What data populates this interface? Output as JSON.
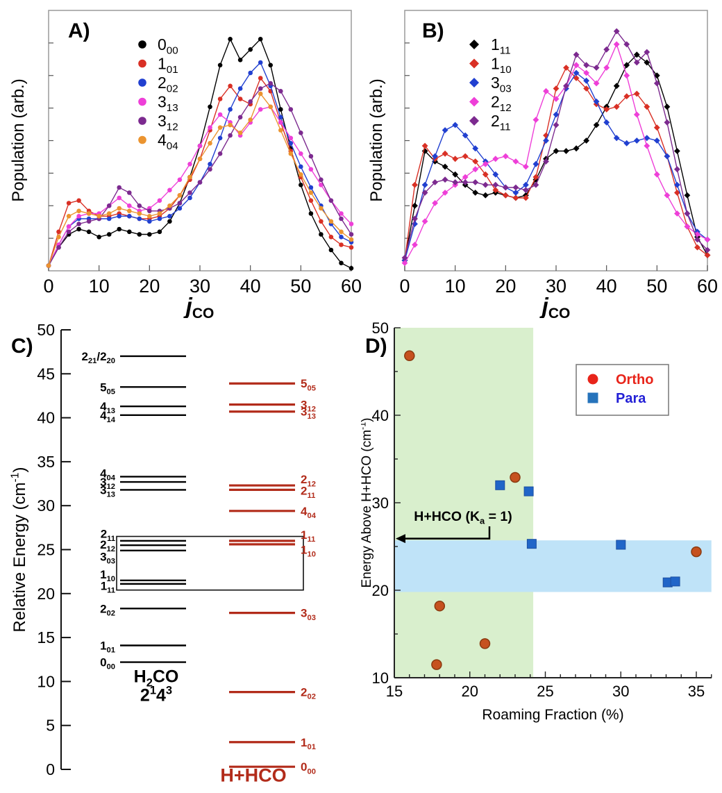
{
  "figure": {
    "background": "#ffffff"
  },
  "chart_data": [
    {
      "panel_label": "A)",
      "type": "line",
      "marker": "circle",
      "xlabel": {
        "main": "j",
        "sub": "CO"
      },
      "ylabel": "Population (arb.)",
      "xlim": [
        0,
        60
      ],
      "xticks": [
        0,
        10,
        20,
        30,
        40,
        50,
        60
      ],
      "x_step": 2,
      "series": [
        {
          "label": "0_00_",
          "color": "#000000",
          "values": [
            0.02,
            0.09,
            0.14,
            0.16,
            0.15,
            0.13,
            0.14,
            0.16,
            0.15,
            0.14,
            0.14,
            0.15,
            0.19,
            0.26,
            0.36,
            0.48,
            0.63,
            0.79,
            0.89,
            0.81,
            0.85,
            0.89,
            0.79,
            0.62,
            0.47,
            0.33,
            0.22,
            0.14,
            0.08,
            0.03,
            0.01
          ]
        },
        {
          "label": "1_01_",
          "color": "#d93025",
          "values": [
            0.02,
            0.15,
            0.26,
            0.27,
            0.23,
            0.21,
            0.21,
            0.22,
            0.21,
            0.2,
            0.2,
            0.21,
            0.24,
            0.29,
            0.35,
            0.43,
            0.54,
            0.66,
            0.71,
            0.66,
            0.64,
            0.74,
            0.69,
            0.57,
            0.46,
            0.36,
            0.27,
            0.19,
            0.13,
            0.1,
            0.09
          ]
        },
        {
          "label": "2_02_",
          "color": "#2140d0",
          "values": [
            0.02,
            0.1,
            0.17,
            0.2,
            0.2,
            0.2,
            0.2,
            0.21,
            0.21,
            0.2,
            0.19,
            0.2,
            0.21,
            0.24,
            0.28,
            0.34,
            0.41,
            0.51,
            0.62,
            0.7,
            0.76,
            0.8,
            0.71,
            0.59,
            0.49,
            0.4,
            0.32,
            0.25,
            0.18,
            0.13,
            0.11
          ]
        },
        {
          "label": "3_13_",
          "color": "#ee3fd8",
          "values": [
            0.02,
            0.1,
            0.17,
            0.21,
            0.22,
            0.22,
            0.25,
            0.28,
            0.25,
            0.23,
            0.24,
            0.27,
            0.31,
            0.35,
            0.41,
            0.48,
            0.55,
            0.6,
            0.57,
            0.52,
            0.57,
            0.62,
            0.63,
            0.57,
            0.51,
            0.45,
            0.39,
            0.33,
            0.27,
            0.22,
            0.18
          ]
        },
        {
          "label": "3_12_",
          "color": "#7c2a8f",
          "values": [
            0.02,
            0.09,
            0.15,
            0.18,
            0.19,
            0.2,
            0.25,
            0.32,
            0.3,
            0.25,
            0.23,
            0.23,
            0.24,
            0.26,
            0.3,
            0.34,
            0.39,
            0.45,
            0.52,
            0.59,
            0.65,
            0.7,
            0.72,
            0.69,
            0.62,
            0.53,
            0.44,
            0.35,
            0.27,
            0.2,
            0.14
          ]
        },
        {
          "label": "4_04_",
          "color": "#eb9430",
          "values": [
            0.02,
            0.13,
            0.21,
            0.23,
            0.22,
            0.21,
            0.22,
            0.24,
            0.23,
            0.22,
            0.21,
            0.22,
            0.25,
            0.29,
            0.36,
            0.43,
            0.49,
            0.55,
            0.56,
            0.53,
            0.58,
            0.68,
            0.63,
            0.54,
            0.45,
            0.37,
            0.3,
            0.24,
            0.19,
            0.15,
            0.12
          ]
        }
      ]
    },
    {
      "panel_label": "B)",
      "type": "line",
      "marker": "diamond",
      "xlabel": {
        "main": "j",
        "sub": "CO"
      },
      "ylabel": "Population (arb.)",
      "xlim": [
        0,
        60
      ],
      "xticks": [
        0,
        10,
        20,
        30,
        40,
        50,
        60
      ],
      "x_step": 2,
      "series": [
        {
          "label": "1_11_",
          "color": "#000000",
          "values": [
            0.04,
            0.25,
            0.46,
            0.42,
            0.4,
            0.37,
            0.33,
            0.3,
            0.29,
            0.3,
            0.29,
            0.28,
            0.29,
            0.35,
            0.43,
            0.46,
            0.46,
            0.47,
            0.5,
            0.56,
            0.63,
            0.71,
            0.79,
            0.83,
            0.8,
            0.75,
            0.63,
            0.46,
            0.29,
            0.13,
            0.06
          ]
        },
        {
          "label": "1_10_",
          "color": "#d93025",
          "values": [
            0.04,
            0.33,
            0.48,
            0.43,
            0.45,
            0.43,
            0.44,
            0.42,
            0.37,
            0.31,
            0.29,
            0.28,
            0.28,
            0.36,
            0.52,
            0.7,
            0.78,
            0.74,
            0.7,
            0.64,
            0.62,
            0.63,
            0.67,
            0.68,
            0.63,
            0.55,
            0.44,
            0.3,
            0.17,
            0.09,
            0.06
          ]
        },
        {
          "label": "3_03_",
          "color": "#2140d0",
          "values": [
            0.04,
            0.18,
            0.33,
            0.44,
            0.54,
            0.56,
            0.52,
            0.47,
            0.42,
            0.37,
            0.32,
            0.3,
            0.33,
            0.41,
            0.5,
            0.6,
            0.7,
            0.76,
            0.73,
            0.65,
            0.57,
            0.51,
            0.49,
            0.5,
            0.51,
            0.5,
            0.44,
            0.33,
            0.22,
            0.15,
            0.12
          ]
        },
        {
          "label": "2_12_",
          "color": "#ee3fd8",
          "values": [
            0.03,
            0.1,
            0.19,
            0.26,
            0.3,
            0.33,
            0.36,
            0.39,
            0.41,
            0.43,
            0.44,
            0.42,
            0.4,
            0.58,
            0.69,
            0.66,
            0.71,
            0.79,
            0.76,
            0.72,
            0.78,
            0.87,
            0.75,
            0.6,
            0.48,
            0.37,
            0.29,
            0.22,
            0.17,
            0.14,
            0.12
          ]
        },
        {
          "label": "2_11_",
          "color": "#7c2a8f",
          "values": [
            0.05,
            0.2,
            0.3,
            0.34,
            0.35,
            0.34,
            0.34,
            0.34,
            0.33,
            0.33,
            0.32,
            0.32,
            0.31,
            0.33,
            0.42,
            0.56,
            0.71,
            0.83,
            0.79,
            0.78,
            0.85,
            0.92,
            0.87,
            0.8,
            0.84,
            0.72,
            0.57,
            0.39,
            0.22,
            0.12,
            0.08
          ]
        }
      ]
    },
    {
      "panel_label": "C)",
      "type": "energy_levels",
      "ylabel": "Relative Energy (cm^-1^)",
      "ylim": [
        0,
        50
      ],
      "ytick_step": 5,
      "left_levels": {
        "title": [
          "H_2_CO",
          "2^1^4^3^"
        ],
        "color": "#000000",
        "levels": [
          {
            "label": "2_21_/2_20_",
            "E": 47.0
          },
          {
            "label": "5_05_",
            "E": 43.5
          },
          {
            "label": "4_13_",
            "E": 41.3
          },
          {
            "label": "4_14_",
            "E": 40.3
          },
          {
            "label": "4_04_",
            "E": 33.3,
            "labelE": 33.7
          },
          {
            "label": "3_12_",
            "E": 32.7
          },
          {
            "label": "3_13_",
            "E": 31.8
          },
          {
            "label": "2_11_",
            "E": 26.0,
            "labelE": 26.8
          },
          {
            "label": "2_12_",
            "E": 25.5,
            "labelE": 25.6
          },
          {
            "label": "3_03_",
            "E": 24.9,
            "labelE": 24.2
          },
          {
            "label": "1_10_",
            "E": 21.5,
            "labelE": 22.2
          },
          {
            "label": "1_11_",
            "E": 21.1,
            "labelE": 20.9
          },
          {
            "label": "2_02_",
            "E": 18.3
          },
          {
            "label": "1_01_",
            "E": 14.1
          },
          {
            "label": "0_00_",
            "E": 12.2
          }
        ]
      },
      "right_levels": {
        "title": "H+HCO",
        "color": "#b22b1a",
        "levels": [
          {
            "label": "5_05_",
            "E": 43.9
          },
          {
            "label": "3_12_",
            "E": 41.5
          },
          {
            "label": "3_13_",
            "E": 40.7
          },
          {
            "label": "2_12_",
            "E": 32.3,
            "labelE": 33.0
          },
          {
            "label": "2_11_",
            "E": 31.8,
            "labelE": 31.7
          },
          {
            "label": "4_04_",
            "E": 29.4
          },
          {
            "label": "1_11_",
            "E": 26.0,
            "labelE": 26.7
          },
          {
            "label": "1_10_",
            "E": 25.6,
            "labelE": 25.0
          },
          {
            "label": "3_03_",
            "E": 17.8
          },
          {
            "label": "2_02_",
            "E": 8.8
          },
          {
            "label": "1_01_",
            "E": 3.1
          },
          {
            "label": "0_00_",
            "E": 0.3
          }
        ]
      },
      "box": {
        "E_top": 26.5,
        "E_bottom": 20.4
      }
    },
    {
      "panel_label": "D)",
      "type": "scatter",
      "xlabel": "Roaming Fraction (%)",
      "ylabel": "Energy Above H+HCO (cm^-1^)",
      "xlim": [
        15,
        36
      ],
      "ylim": [
        10,
        50
      ],
      "xticks": [
        15,
        20,
        25,
        30,
        35
      ],
      "yticks": [
        10,
        20,
        30,
        40,
        50
      ],
      "x_minor_step": 1,
      "y_minor_step": 5,
      "regions": {
        "green": {
          "x": [
            15,
            24.2
          ],
          "y": [
            10,
            50
          ],
          "color": "#d9efcd"
        },
        "blue": {
          "x": [
            15,
            36
          ],
          "y": [
            19.8,
            25.7
          ],
          "color": "#bfe3f8"
        }
      },
      "annotation": {
        "text": "H+HCO (K_a_ = 1)",
        "arrow_y": 25.9
      },
      "legend": [
        {
          "label": "Ortho",
          "marker": "circle",
          "color": "#e8241a",
          "text_color": "#e8241a"
        },
        {
          "label": "Para",
          "marker": "square",
          "color": "#2673bb",
          "text_color": "#2320d6"
        }
      ],
      "series": [
        {
          "name": "ortho",
          "marker": "circle",
          "fill": "#c6511f",
          "stroke": "#8a3a10",
          "points": [
            [
              16,
              46.8
            ],
            [
              23,
              32.9
            ],
            [
              18,
              18.2
            ],
            [
              21,
              13.9
            ],
            [
              17.8,
              11.5
            ],
            [
              35,
              24.4
            ]
          ]
        },
        {
          "name": "para",
          "marker": "square",
          "fill": "#2065c8",
          "stroke": "#1c4fa0",
          "points": [
            [
              22,
              32.0
            ],
            [
              23.9,
              31.3
            ],
            [
              24.1,
              25.3
            ],
            [
              30,
              25.2
            ],
            [
              33.1,
              20.9
            ],
            [
              33.6,
              21.0
            ]
          ]
        }
      ]
    }
  ]
}
